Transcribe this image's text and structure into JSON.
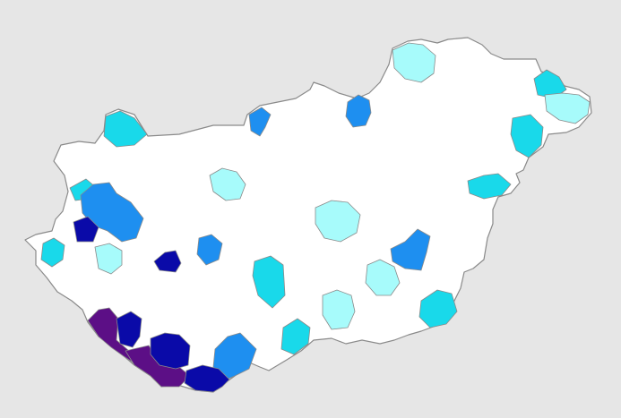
{
  "map": {
    "region": "Hungary",
    "palette": {
      "no_data": "#ffffff",
      "level_1": "#a7fbfb",
      "level_2": "#19d9ea",
      "level_3": "#1e8ff0",
      "level_4": "#0a0aa8",
      "level_5": "#5c0f86"
    },
    "districts": [
      {
        "name": "district-nw-corner",
        "level": "level_2"
      },
      {
        "name": "district-nw-blue-cluster",
        "level": "level_3"
      },
      {
        "name": "district-west-navy",
        "level": "level_4"
      },
      {
        "name": "district-west-central-navy",
        "level": "level_4"
      },
      {
        "name": "district-north-blue",
        "level": "level_3"
      },
      {
        "name": "district-north-west-blue",
        "level": "level_3"
      },
      {
        "name": "district-east-blue",
        "level": "level_3"
      },
      {
        "name": "district-central-west-blue",
        "level": "level_3"
      },
      {
        "name": "district-south-blue",
        "level": "level_3"
      },
      {
        "name": "district-southwest-purple",
        "level": "level_5"
      },
      {
        "name": "district-south-purple",
        "level": "level_5"
      },
      {
        "name": "district-southwest-navy-1",
        "level": "level_4"
      },
      {
        "name": "district-southwest-navy-2",
        "level": "level_4"
      },
      {
        "name": "district-south-navy",
        "level": "level_4"
      },
      {
        "name": "district-northeast-teal",
        "level": "level_2"
      },
      {
        "name": "district-far-east-teal",
        "level": "level_2"
      },
      {
        "name": "district-east-teal",
        "level": "level_2"
      },
      {
        "name": "district-central-teal",
        "level": "level_2"
      },
      {
        "name": "district-south-central-teal",
        "level": "level_2"
      },
      {
        "name": "district-southeast-teal",
        "level": "level_2"
      },
      {
        "name": "district-west-teal",
        "level": "level_2"
      },
      {
        "name": "district-north-teal",
        "level": "level_2"
      },
      {
        "name": "district-northeast-light",
        "level": "level_1"
      },
      {
        "name": "district-east-light",
        "level": "level_1"
      },
      {
        "name": "district-north-light",
        "level": "level_1"
      },
      {
        "name": "district-central-light",
        "level": "level_1"
      },
      {
        "name": "district-southeast-light",
        "level": "level_1"
      },
      {
        "name": "district-south-light",
        "level": "level_1"
      },
      {
        "name": "district-west-light",
        "level": "level_1"
      }
    ]
  }
}
